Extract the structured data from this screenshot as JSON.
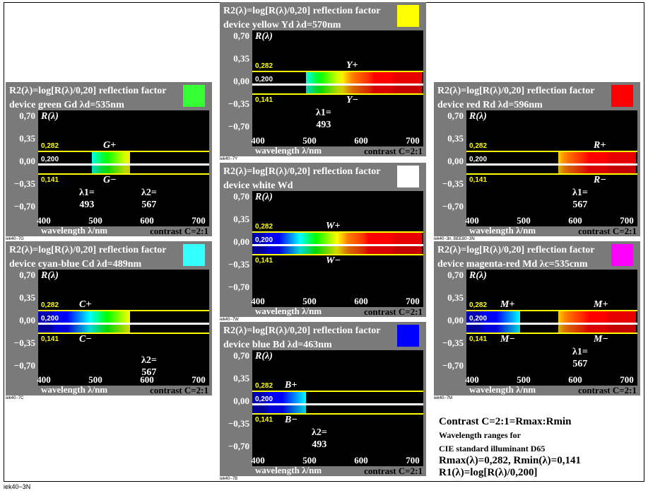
{
  "footer_id": "iek40−3N",
  "tick_y": [
    "0,70",
    "0,35",
    "0,00",
    "−0,35",
    "−0,70"
  ],
  "tick_x": [
    "400",
    "500",
    "600",
    "700"
  ],
  "levels": {
    "max": "0,282",
    "ref": "0,200",
    "min": "0,141"
  },
  "rlambda": "R(λ)",
  "xlabel": "wavelength λ/nm",
  "contrast": "contrast C=2:1",
  "title_line1": "R2(λ)=log[R(λ)/0,20] reflection factor",
  "panels": [
    {
      "key": "yellow",
      "line2": "device yellow Yd   λd=570nm",
      "swatch": "#ffff00",
      "id": "iek40−7Y",
      "plus": "Y+",
      "minus": "Y−",
      "lambda1": "λ1=\n493",
      "lambda2": ""
    },
    {
      "key": "green",
      "line2": "device green Gd   λd=535nm",
      "swatch": "#33ff33",
      "id": "iek40−7G",
      "plus": "G+",
      "minus": "G−",
      "lambda1": "λ1=\n493",
      "lambda2": "λ2=\n567"
    },
    {
      "key": "red",
      "line2": "device red Rd   λd=596nm",
      "swatch": "#ff0000",
      "id": "iek40−3n, BEE80−3N",
      "plus": "R+",
      "minus": "R−",
      "lambda1": "λ1=\n567",
      "lambda2": ""
    },
    {
      "key": "white",
      "line2": "device white Wd",
      "swatch": "#ffffff",
      "id": "iek40−7W",
      "plus": "W+",
      "minus": "W−",
      "lambda1": "",
      "lambda2": ""
    },
    {
      "key": "cyan",
      "line2": "device cyan-blue Cd   λd=489nm",
      "swatch": "#33ffff",
      "id": "iek40−7C",
      "plus": "C+",
      "minus": "C−",
      "lambda1": "",
      "lambda2": "λ2=\n567"
    },
    {
      "key": "blue",
      "line2": "device blue Bd   λd=463nm",
      "swatch": "#0000ff",
      "id": "iek40−7B",
      "plus": "B+",
      "minus": "B−",
      "lambda1": "",
      "lambda2": "λ2=\n493"
    },
    {
      "key": "magenta",
      "line2": "device magenta-red Md   λc=535cnm",
      "swatch": "#ff00ff",
      "id": "iek40−7M",
      "plus": "M+",
      "minus": "M−",
      "lambda1": "λ1=\n567",
      "lambda2": ""
    }
  ],
  "info": {
    "line1": "Contrast C=2:1=Rmax:Rmin",
    "line2": "Wavelength ranges for",
    "line3": "CIE standard illuminant D65",
    "line4": "Rmax(λ)=0,282, Rmin(λ)=0,141",
    "line5": "R1(λ)=log[R(λ)/0,200]"
  }
}
